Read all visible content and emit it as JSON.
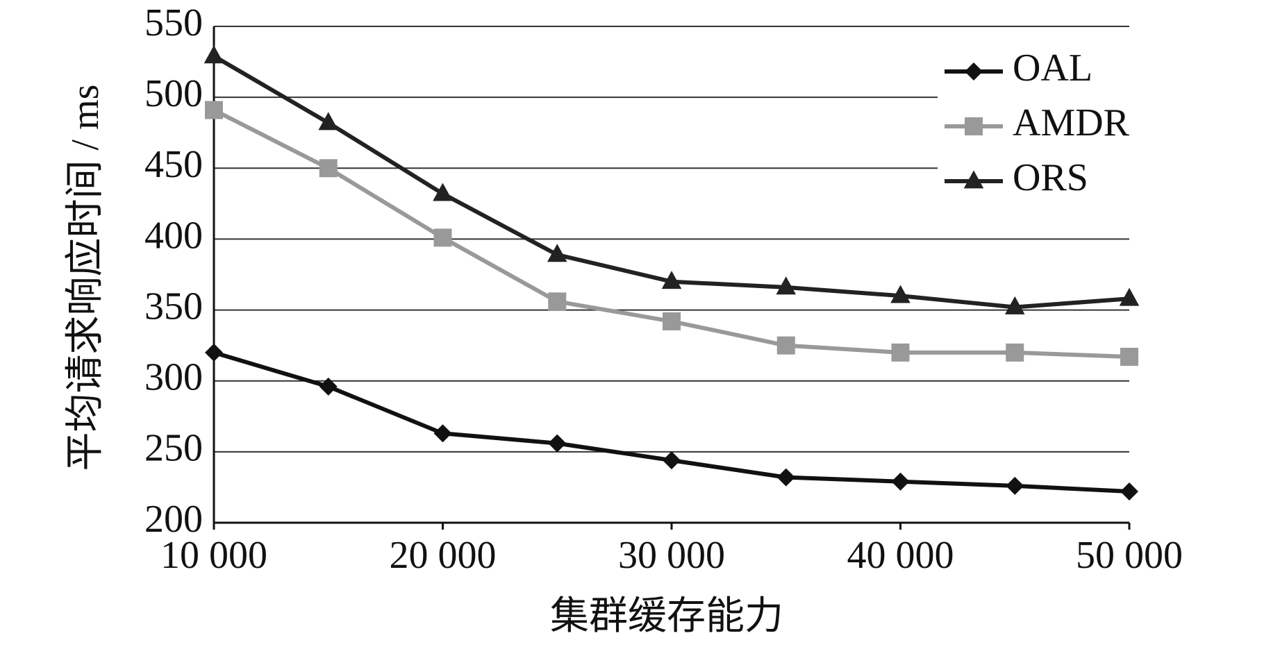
{
  "chart_data": {
    "type": "line",
    "x_label": "集群缓存能力",
    "y_label": "平均请求响应时间 / ms",
    "x": [
      10000,
      15000,
      20000,
      25000,
      30000,
      35000,
      40000,
      45000,
      50000
    ],
    "series": [
      {
        "name": "OAL",
        "color": "#111111",
        "marker": "diamond",
        "values": [
          320,
          296,
          263,
          256,
          244,
          232,
          229,
          226,
          222
        ]
      },
      {
        "name": "AMDR",
        "color": "#999999",
        "marker": "square",
        "values": [
          491,
          450,
          401,
          356,
          342,
          325,
          320,
          320,
          317
        ]
      },
      {
        "name": "ORS",
        "color": "#222222",
        "marker": "triangle",
        "values": [
          529,
          482,
          432,
          389,
          370,
          366,
          360,
          352,
          358
        ]
      }
    ],
    "xlim": [
      10000,
      50000
    ],
    "xticks": [
      {
        "value": 10000,
        "label": "10 000"
      },
      {
        "value": 20000,
        "label": "20 000"
      },
      {
        "value": 30000,
        "label": "30 000"
      },
      {
        "value": 40000,
        "label": "40 000"
      },
      {
        "value": 50000,
        "label": "50 000"
      }
    ],
    "ylim": [
      200,
      550
    ],
    "yticks": [
      200,
      250,
      300,
      350,
      400,
      450,
      500,
      550
    ],
    "grid": true,
    "legend": "top-right"
  }
}
